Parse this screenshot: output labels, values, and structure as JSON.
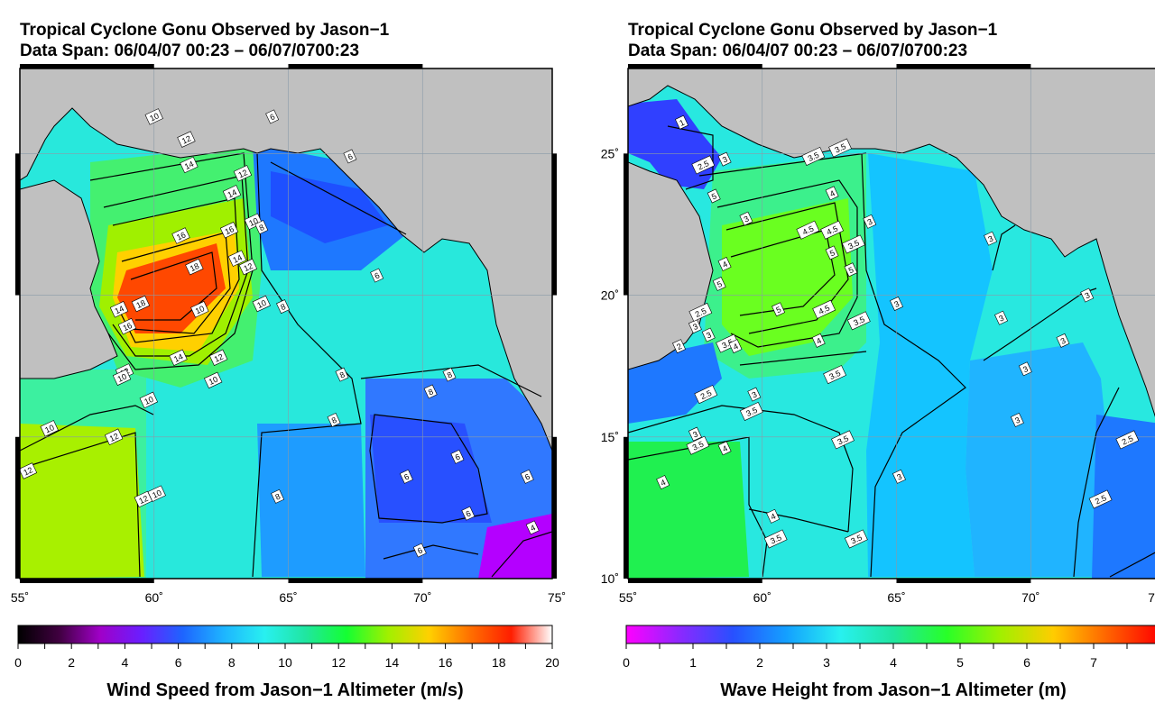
{
  "colors": {
    "land": "#c0c0c0",
    "contour": "#000000",
    "wind_scale": [
      "#000000",
      "#400040",
      "#a000c8",
      "#6a1eff",
      "#1e64ff",
      "#1eb4ff",
      "#28f0f0",
      "#20e6a0",
      "#14ff32",
      "#a0f000",
      "#ffd000",
      "#ff7000",
      "#ff1e00",
      "#ffffff"
    ],
    "wave_scale": [
      "#ff00ff",
      "#8c28ff",
      "#2850ff",
      "#14a0ff",
      "#28f0f0",
      "#20e6a0",
      "#28ff28",
      "#a0f000",
      "#ffcc00",
      "#ff6400",
      "#ff0000"
    ]
  },
  "chart_data": [
    {
      "type": "heatmap",
      "title": "Tropical Cyclone Gonu Observed by Jason−1",
      "subtitle": "Data Span: 06/04/07 00:23 – 06/07/0700:23",
      "colorbar_label": "Wind Speed from Jason−1 Altimeter (m/s)",
      "colorbar_ticks": [
        "0",
        "2",
        "4",
        "6",
        "8",
        "10",
        "12",
        "14",
        "16",
        "18",
        "20"
      ],
      "colorbar_range": [
        0,
        20
      ],
      "x_ticks": [
        "55˚",
        "60˚",
        "65˚",
        "70˚",
        "75˚"
      ],
      "y_ticks": [],
      "xlim": [
        55,
        75
      ],
      "ylim": [
        10,
        28
      ],
      "contour_labels": [
        {
          "text": "10",
          "lon": 60.0,
          "lat": 26.3
        },
        {
          "text": "12",
          "lon": 61.2,
          "lat": 25.5
        },
        {
          "text": "14",
          "lon": 61.3,
          "lat": 24.6
        },
        {
          "text": "16",
          "lon": 61.0,
          "lat": 22.1
        },
        {
          "text": "18",
          "lon": 61.5,
          "lat": 21.0
        },
        {
          "text": "18",
          "lon": 59.5,
          "lat": 19.7
        },
        {
          "text": "16",
          "lon": 59.0,
          "lat": 18.9
        },
        {
          "text": "14",
          "lon": 58.7,
          "lat": 19.5
        },
        {
          "text": "10",
          "lon": 61.7,
          "lat": 19.5
        },
        {
          "text": "14",
          "lon": 60.9,
          "lat": 17.8
        },
        {
          "text": "12",
          "lon": 62.4,
          "lat": 17.8
        },
        {
          "text": "12",
          "lon": 58.9,
          "lat": 17.3
        },
        {
          "text": "10",
          "lon": 58.8,
          "lat": 17.1
        },
        {
          "text": "10",
          "lon": 62.2,
          "lat": 17.0
        },
        {
          "text": "16",
          "lon": 62.8,
          "lat": 22.3
        },
        {
          "text": "14",
          "lon": 63.1,
          "lat": 21.3
        },
        {
          "text": "12",
          "lon": 63.5,
          "lat": 21.0
        },
        {
          "text": "14",
          "lon": 62.9,
          "lat": 23.6
        },
        {
          "text": "12",
          "lon": 63.3,
          "lat": 24.3
        },
        {
          "text": "10",
          "lon": 63.7,
          "lat": 22.6
        },
        {
          "text": "8",
          "lon": 64.0,
          "lat": 22.4
        },
        {
          "text": "10",
          "lon": 64.0,
          "lat": 19.7
        },
        {
          "text": "8",
          "lon": 64.8,
          "lat": 19.6
        },
        {
          "text": "6",
          "lon": 64.4,
          "lat": 26.3
        },
        {
          "text": "6",
          "lon": 67.3,
          "lat": 24.9
        },
        {
          "text": "6",
          "lon": 68.3,
          "lat": 20.7
        },
        {
          "text": "8",
          "lon": 67.0,
          "lat": 17.2
        },
        {
          "text": "8",
          "lon": 66.7,
          "lat": 15.6
        },
        {
          "text": "8",
          "lon": 71.0,
          "lat": 17.2
        },
        {
          "text": "8",
          "lon": 70.3,
          "lat": 16.6
        },
        {
          "text": "10",
          "lon": 59.8,
          "lat": 16.3
        },
        {
          "text": "10",
          "lon": 56.1,
          "lat": 15.3
        },
        {
          "text": "12",
          "lon": 58.5,
          "lat": 15.0
        },
        {
          "text": "12",
          "lon": 55.3,
          "lat": 13.8
        },
        {
          "text": "12",
          "lon": 59.6,
          "lat": 12.8
        },
        {
          "text": "10",
          "lon": 60.1,
          "lat": 13.0
        },
        {
          "text": "8",
          "lon": 64.6,
          "lat": 12.9
        },
        {
          "text": "6",
          "lon": 71.3,
          "lat": 14.3
        },
        {
          "text": "6",
          "lon": 69.4,
          "lat": 13.6
        },
        {
          "text": "6",
          "lon": 73.9,
          "lat": 13.6
        },
        {
          "text": "6",
          "lon": 71.7,
          "lat": 12.3
        },
        {
          "text": "6",
          "lon": 69.9,
          "lat": 11.0
        },
        {
          "text": "4",
          "lon": 74.1,
          "lat": 11.8
        }
      ]
    },
    {
      "type": "heatmap",
      "title": "Tropical Cyclone Gonu Observed by Jason−1",
      "subtitle": "Data Span: 06/04/07 00:23 – 06/07/0700:23",
      "colorbar_label": "Wave Height from Jason−1 Altimeter (m)",
      "colorbar_ticks": [
        "0",
        "1",
        "2",
        "3",
        "4",
        "5",
        "6",
        "7"
      ],
      "colorbar_range": [
        0,
        8
      ],
      "x_ticks": [
        "55˚",
        "60˚",
        "65˚",
        "70˚",
        "7"
      ],
      "y_ticks": [
        "10˚",
        "15˚",
        "20˚",
        "25˚"
      ],
      "xlim": [
        55,
        75
      ],
      "ylim": [
        10,
        28
      ],
      "contour_labels": [
        {
          "text": "1",
          "lon": 57.0,
          "lat": 26.1
        },
        {
          "text": "2.5",
          "lon": 57.8,
          "lat": 24.6
        },
        {
          "text": "3",
          "lon": 58.6,
          "lat": 24.8
        },
        {
          "text": "3.5",
          "lon": 61.9,
          "lat": 24.9
        },
        {
          "text": "3.5",
          "lon": 62.9,
          "lat": 25.2
        },
        {
          "text": "5",
          "lon": 58.2,
          "lat": 23.5
        },
        {
          "text": "4",
          "lon": 62.6,
          "lat": 23.6
        },
        {
          "text": "3",
          "lon": 59.4,
          "lat": 22.7
        },
        {
          "text": "4.5",
          "lon": 61.7,
          "lat": 22.3
        },
        {
          "text": "4.5",
          "lon": 62.6,
          "lat": 22.3
        },
        {
          "text": "3",
          "lon": 64.0,
          "lat": 22.6
        },
        {
          "text": "3.5",
          "lon": 63.4,
          "lat": 21.8
        },
        {
          "text": "5",
          "lon": 62.6,
          "lat": 21.5
        },
        {
          "text": "5",
          "lon": 63.3,
          "lat": 20.9
        },
        {
          "text": "5",
          "lon": 58.4,
          "lat": 20.4
        },
        {
          "text": "4",
          "lon": 58.6,
          "lat": 21.1
        },
        {
          "text": "5",
          "lon": 60.6,
          "lat": 19.5
        },
        {
          "text": "4.5",
          "lon": 62.3,
          "lat": 19.5
        },
        {
          "text": "3.5",
          "lon": 63.6,
          "lat": 19.1
        },
        {
          "text": "3",
          "lon": 68.5,
          "lat": 22.0
        },
        {
          "text": "3",
          "lon": 65.0,
          "lat": 19.7
        },
        {
          "text": "3",
          "lon": 68.9,
          "lat": 19.2
        },
        {
          "text": "3",
          "lon": 72.1,
          "lat": 20.0
        },
        {
          "text": "4",
          "lon": 62.1,
          "lat": 18.4
        },
        {
          "text": "3.5",
          "lon": 62.7,
          "lat": 17.2
        },
        {
          "text": "3",
          "lon": 69.8,
          "lat": 17.4
        },
        {
          "text": "3",
          "lon": 71.2,
          "lat": 18.4
        },
        {
          "text": "2",
          "lon": 56.9,
          "lat": 18.2
        },
        {
          "text": "3",
          "lon": 57.5,
          "lat": 18.9
        },
        {
          "text": "2.5",
          "lon": 57.7,
          "lat": 19.4
        },
        {
          "text": "3",
          "lon": 58.0,
          "lat": 18.6
        },
        {
          "text": "3.5",
          "lon": 58.7,
          "lat": 18.3
        },
        {
          "text": "4",
          "lon": 59.0,
          "lat": 18.2
        },
        {
          "text": "2.5",
          "lon": 57.9,
          "lat": 16.5
        },
        {
          "text": "3",
          "lon": 59.7,
          "lat": 16.5
        },
        {
          "text": "3.5",
          "lon": 59.6,
          "lat": 15.9
        },
        {
          "text": "3",
          "lon": 57.5,
          "lat": 15.1
        },
        {
          "text": "3",
          "lon": 69.5,
          "lat": 15.6
        },
        {
          "text": "3.5",
          "lon": 57.6,
          "lat": 14.7
        },
        {
          "text": "4",
          "lon": 58.6,
          "lat": 14.6
        },
        {
          "text": "3.5",
          "lon": 63.0,
          "lat": 14.9
        },
        {
          "text": "3",
          "lon": 65.1,
          "lat": 13.6
        },
        {
          "text": "2.5",
          "lon": 73.6,
          "lat": 14.9
        },
        {
          "text": "2.5",
          "lon": 72.6,
          "lat": 12.8
        },
        {
          "text": "4",
          "lon": 56.3,
          "lat": 13.4
        },
        {
          "text": "4",
          "lon": 60.4,
          "lat": 12.2
        },
        {
          "text": "3.5",
          "lon": 60.5,
          "lat": 11.4
        },
        {
          "text": "3.5",
          "lon": 63.5,
          "lat": 11.4
        }
      ]
    }
  ]
}
